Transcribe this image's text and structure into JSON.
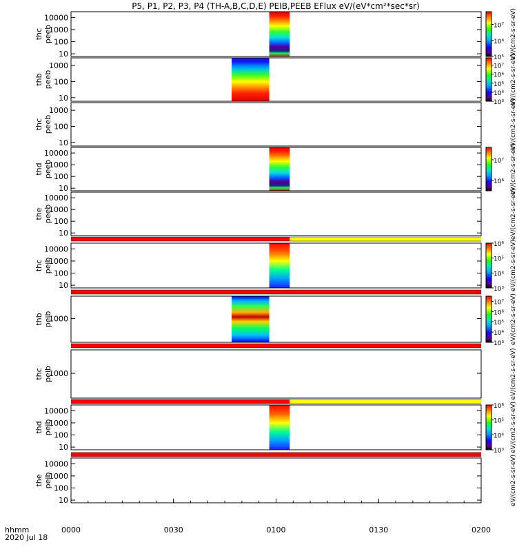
{
  "title": "P5, P1, P2, P3, P4 (TH-A,B,C,D,E) PEIB,PEEB EFlux eV/(eV*cm²*sec*sr)",
  "footer": {
    "time_label": "hhmm",
    "date_label": "2020 Jul 18"
  },
  "colors": {
    "bar_red": "#ff0000",
    "bar_yellow": "#ffff00",
    "missing": "#ffffff"
  },
  "chart_data": {
    "type": "heatmap",
    "x_axis": {
      "ticks": [
        "0000",
        "0030",
        "0100",
        "0130",
        "0200"
      ],
      "range": [
        "2020-07-18T00:00",
        "2020-07-18T02:00"
      ]
    },
    "panels": [
      {
        "probe": "thc",
        "product": "peeb",
        "ylim": [
          6,
          30000
        ],
        "yscale": "log",
        "yticks": [
          "10",
          "100",
          "1000",
          "10000"
        ],
        "data_interval": [
          "00:58",
          "01:04"
        ],
        "colorbar": {
          "label": "eV/(cm2-s-sr-eV)",
          "ticks": [
            "10⁵",
            "10⁶",
            "10⁷"
          ],
          "range": [
            5,
            7.8
          ]
        }
      },
      {
        "probe": "thb",
        "product": "peeb",
        "ylim": [
          6,
          3000
        ],
        "yscale": "log",
        "yticks": [
          "10",
          "100",
          "1000"
        ],
        "data_interval": [
          "00:47",
          "00:58"
        ],
        "colorbar": {
          "label": "eV/(cm2-s-sr-eV)",
          "ticks": [
            "10³",
            "10⁴",
            "10⁵",
            "10⁶",
            "10⁷"
          ],
          "range": [
            3,
            7.8
          ]
        }
      },
      {
        "probe": "thc",
        "product": "peeb",
        "ylim": [
          6,
          3000
        ],
        "yscale": "log",
        "yticks": [
          "10",
          "100",
          "1000"
        ],
        "data_interval": null,
        "colorbar": {
          "label": "eV/(cm2-s-sr-eV)",
          "ticks": [],
          "range": null
        }
      },
      {
        "probe": "thd",
        "product": "peeb",
        "ylim": [
          6,
          30000
        ],
        "yscale": "log",
        "yticks": [
          "10",
          "100",
          "1000",
          "10000"
        ],
        "data_interval": [
          "00:58",
          "01:04"
        ],
        "colorbar": {
          "label": "eV/(cm2-s-sr-eV)",
          "ticks": [
            "10⁶",
            "10⁷"
          ],
          "range": [
            5.5,
            7.6
          ]
        }
      },
      {
        "probe": "the",
        "product": "peeb",
        "ylim": [
          6,
          30000
        ],
        "yscale": "log",
        "yticks": [
          "10",
          "100",
          "1000",
          "10000"
        ],
        "data_interval": null,
        "colorbar": {
          "label": "eV/(cm2-s-sr-eV)",
          "ticks": [],
          "range": null
        }
      },
      {
        "probe": "thc",
        "product": "peib",
        "ylim": [
          6,
          30000
        ],
        "yscale": "log",
        "yticks": [
          "10",
          "100",
          "1000",
          "10000"
        ],
        "data_interval": [
          "00:58",
          "01:04"
        ],
        "colorbar": {
          "label": "eV/(cm2-s-sr-eV)",
          "ticks": [
            "10³",
            "10⁴",
            "10⁵",
            "10⁶"
          ],
          "range": [
            3,
            6
          ]
        }
      },
      {
        "probe": "thb",
        "product": "peib",
        "ylim": [
          150,
          6000
        ],
        "yscale": "log",
        "yticks": [
          "1000"
        ],
        "data_interval": [
          "00:47",
          "00:58"
        ],
        "colorbar": {
          "label": "eV/(cm2-s-sr-eV)",
          "ticks": [
            "10³",
            "10⁴",
            "10⁵",
            "10⁶",
            "10⁷"
          ],
          "range": [
            3,
            7.5
          ]
        }
      },
      {
        "probe": "thc",
        "product": "peib",
        "ylim": [
          150,
          6000
        ],
        "yscale": "log",
        "yticks": [
          "1000"
        ],
        "data_interval": null,
        "colorbar": {
          "label": "eV/(cm2-s-sr-eV)",
          "ticks": [],
          "range": null
        }
      },
      {
        "probe": "thd",
        "product": "peib",
        "ylim": [
          6,
          30000
        ],
        "yscale": "log",
        "yticks": [
          "10",
          "100",
          "1000",
          "10000"
        ],
        "data_interval": [
          "00:58",
          "01:04"
        ],
        "colorbar": {
          "label": "eV/(cm2-s-sr-eV)",
          "ticks": [
            "10³",
            "10⁴",
            "10⁵",
            "10⁶"
          ],
          "range": [
            3,
            6
          ]
        }
      },
      {
        "probe": "the",
        "product": "peib",
        "ylim": [
          6,
          30000
        ],
        "yscale": "log",
        "yticks": [
          "10",
          "100",
          "1000",
          "10000"
        ],
        "data_interval": null,
        "colorbar": {
          "label": "eV/(cm2-s-sr-eV)",
          "ticks": [],
          "range": null
        }
      }
    ],
    "status_bars": [
      {
        "segments": [
          {
            "from": "00:00",
            "to": "01:04",
            "color": "red"
          },
          {
            "from": "01:04",
            "to": "02:00",
            "color": "yellow"
          }
        ]
      },
      {
        "segments": [
          {
            "from": "00:00",
            "to": "02:00",
            "color": "red"
          }
        ]
      },
      {
        "segments": [
          {
            "from": "00:00",
            "to": "02:00",
            "color": "red"
          }
        ]
      },
      {
        "segments": [
          {
            "from": "00:00",
            "to": "01:04",
            "color": "red"
          },
          {
            "from": "01:04",
            "to": "02:00",
            "color": "yellow"
          }
        ]
      },
      {
        "segments": [
          {
            "from": "00:00",
            "to": "02:00",
            "color": "red"
          }
        ]
      }
    ]
  }
}
